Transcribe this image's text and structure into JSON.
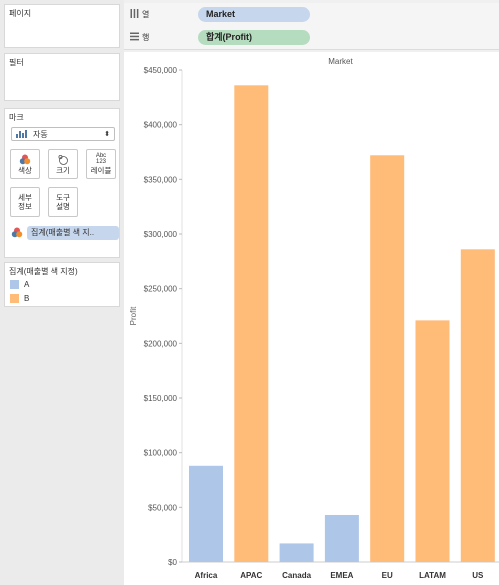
{
  "left_panel": {
    "pages_title": "페이지",
    "filters_title": "필터",
    "marks_title": "마크",
    "mark_type": "자동",
    "buttons": {
      "color": "색상",
      "size": "크기",
      "label": "레이블",
      "label_icon": "Abc\n123",
      "detail": "세부\n정보",
      "tooltip": "도구\n설명"
    },
    "color_pill": "집계(매출별 색 지..",
    "legend_title": "집계(매출별 색 지정)",
    "legend_items": [
      {
        "label": "A",
        "color": "#aec7e8"
      },
      {
        "label": "B",
        "color": "#ffbb78"
      }
    ]
  },
  "shelves": {
    "columns_label": "열",
    "columns_pill": "Market",
    "rows_label": "행",
    "rows_pill": "합계(Profit)"
  },
  "chart_data": {
    "type": "bar",
    "title": "Market",
    "ylabel": "Profit",
    "categories": [
      "Africa",
      "APAC",
      "Canada",
      "EMEA",
      "EU",
      "LATAM",
      "US"
    ],
    "values": [
      88000,
      436000,
      17000,
      43000,
      372000,
      221000,
      286000
    ],
    "groups": [
      "A",
      "B",
      "A",
      "A",
      "B",
      "B",
      "B"
    ],
    "group_colors": {
      "A": "#aec7e8",
      "B": "#ffbb78"
    },
    "ylim": [
      0,
      450000
    ],
    "yticks": [
      0,
      50000,
      100000,
      150000,
      200000,
      250000,
      300000,
      350000,
      400000,
      450000
    ],
    "ytick_labels": [
      "$0",
      "$50,000",
      "$100,000",
      "$150,000",
      "$200,000",
      "$250,000",
      "$300,000",
      "$350,000",
      "$400,000",
      "$450,000"
    ]
  }
}
